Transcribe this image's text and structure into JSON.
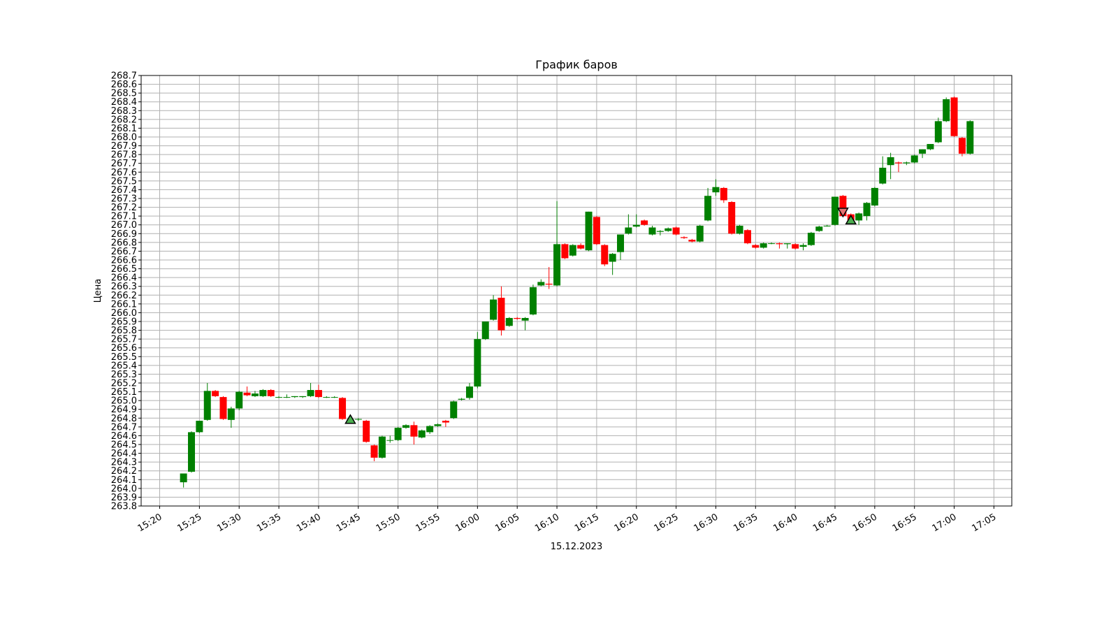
{
  "chart_data": {
    "type": "candlestick",
    "title": "График баров",
    "xlabel": "15.12.2023",
    "ylabel": "Цена",
    "ylim": [
      263.8,
      268.7
    ],
    "xlim": [
      "15:17:40",
      "17:07:15"
    ],
    "grid": true,
    "legend": "none",
    "colors": {
      "up": "#008000",
      "down": "#ff0000",
      "wick": "#000000",
      "grid": "#b0b0b0",
      "buy_marker": "#4caf50",
      "sell_marker": "#e57373"
    },
    "x_ticks": [
      "15:20",
      "15:25",
      "15:30",
      "15:35",
      "15:40",
      "15:45",
      "15:50",
      "15:55",
      "16:00",
      "16:05",
      "16:10",
      "16:15",
      "16:20",
      "16:25",
      "16:30",
      "16:35",
      "16:40",
      "16:45",
      "16:50",
      "16:55",
      "17:00",
      "17:05"
    ],
    "y_ticks": [
      "263.8",
      "263.9",
      "264.0",
      "264.1",
      "264.2",
      "264.3",
      "264.4",
      "264.5",
      "264.6",
      "264.7",
      "264.8",
      "264.9",
      "265.0",
      "265.1",
      "265.2",
      "265.3",
      "265.4",
      "265.5",
      "265.6",
      "265.7",
      "265.8",
      "265.9",
      "266.0",
      "266.1",
      "266.2",
      "266.3",
      "266.4",
      "266.5",
      "266.6",
      "266.7",
      "266.8",
      "266.9",
      "267.0",
      "267.1",
      "267.2",
      "267.3",
      "267.4",
      "267.5",
      "267.6",
      "267.7",
      "267.8",
      "267.9",
      "268.0",
      "268.1",
      "268.2",
      "268.3",
      "268.4",
      "268.5",
      "268.6",
      "268.7"
    ],
    "candles": [
      {
        "time": "15:23",
        "open": 264.07,
        "high": 264.15,
        "low": 264.01,
        "close": 264.17
      },
      {
        "time": "15:24",
        "open": 264.19,
        "high": 264.65,
        "low": 264.18,
        "close": 264.64
      },
      {
        "time": "15:25",
        "open": 264.64,
        "high": 264.77,
        "low": 264.63,
        "close": 264.77
      },
      {
        "time": "15:26",
        "open": 264.78,
        "high": 265.2,
        "low": 264.77,
        "close": 265.11
      },
      {
        "time": "15:27",
        "open": 265.11,
        "high": 265.12,
        "low": 265.04,
        "close": 265.05
      },
      {
        "time": "15:28",
        "open": 265.04,
        "high": 265.05,
        "low": 264.78,
        "close": 264.79
      },
      {
        "time": "15:29",
        "open": 264.78,
        "high": 264.93,
        "low": 264.69,
        "close": 264.91
      },
      {
        "time": "15:30",
        "open": 264.91,
        "high": 265.11,
        "low": 264.89,
        "close": 265.1
      },
      {
        "time": "15:31",
        "open": 265.09,
        "high": 265.16,
        "low": 265.05,
        "close": 265.06
      },
      {
        "time": "15:32",
        "open": 265.05,
        "high": 265.11,
        "low": 265.04,
        "close": 265.08
      },
      {
        "time": "15:33",
        "open": 265.05,
        "high": 265.13,
        "low": 265.04,
        "close": 265.12
      },
      {
        "time": "15:34",
        "open": 265.12,
        "high": 265.13,
        "low": 265.04,
        "close": 265.05
      },
      {
        "time": "15:35",
        "open": 265.04,
        "high": 265.05,
        "low": 265.03,
        "close": 265.04
      },
      {
        "time": "15:36",
        "open": 265.04,
        "high": 265.07,
        "low": 265.03,
        "close": 265.04
      },
      {
        "time": "15:37",
        "open": 265.04,
        "high": 265.05,
        "low": 265.03,
        "close": 265.05
      },
      {
        "time": "15:38",
        "open": 265.04,
        "high": 265.05,
        "low": 265.03,
        "close": 265.05
      },
      {
        "time": "15:39",
        "open": 265.05,
        "high": 265.2,
        "low": 265.04,
        "close": 265.12
      },
      {
        "time": "15:40",
        "open": 265.12,
        "high": 265.18,
        "low": 265.03,
        "close": 265.04
      },
      {
        "time": "15:41",
        "open": 265.04,
        "high": 265.05,
        "low": 265.03,
        "close": 265.04
      },
      {
        "time": "15:42",
        "open": 265.04,
        "high": 265.05,
        "low": 265.03,
        "close": 265.04
      },
      {
        "time": "15:43",
        "open": 265.03,
        "high": 265.04,
        "low": 264.78,
        "close": 264.79
      },
      {
        "time": "15:44",
        "open": 264.79,
        "high": 264.8,
        "low": 264.77,
        "close": 264.79
      },
      {
        "time": "15:45",
        "open": 264.79,
        "high": 264.8,
        "low": 264.77,
        "close": 264.79
      },
      {
        "time": "15:46",
        "open": 264.77,
        "high": 264.78,
        "low": 264.52,
        "close": 264.53
      },
      {
        "time": "15:47",
        "open": 264.49,
        "high": 264.5,
        "low": 264.31,
        "close": 264.35
      },
      {
        "time": "15:48",
        "open": 264.35,
        "high": 264.6,
        "low": 264.34,
        "close": 264.59
      },
      {
        "time": "15:49",
        "open": 264.55,
        "high": 264.6,
        "low": 264.52,
        "close": 264.55
      },
      {
        "time": "15:50",
        "open": 264.55,
        "high": 264.7,
        "low": 264.54,
        "close": 264.69
      },
      {
        "time": "15:51",
        "open": 264.69,
        "high": 264.73,
        "low": 264.68,
        "close": 264.72
      },
      {
        "time": "15:52",
        "open": 264.72,
        "high": 264.76,
        "low": 264.5,
        "close": 264.59
      },
      {
        "time": "15:53",
        "open": 264.58,
        "high": 264.67,
        "low": 264.57,
        "close": 264.66
      },
      {
        "time": "15:54",
        "open": 264.64,
        "high": 264.72,
        "low": 264.62,
        "close": 264.71
      },
      {
        "time": "15:55",
        "open": 264.71,
        "high": 264.74,
        "low": 264.7,
        "close": 264.73
      },
      {
        "time": "15:56",
        "open": 264.77,
        "high": 264.78,
        "low": 264.7,
        "close": 264.75
      },
      {
        "time": "15:57",
        "open": 264.8,
        "high": 265.0,
        "low": 264.79,
        "close": 264.99
      },
      {
        "time": "15:58",
        "open": 265.01,
        "high": 265.03,
        "low": 265.0,
        "close": 265.02
      },
      {
        "time": "15:59",
        "open": 265.03,
        "high": 265.2,
        "low": 265.01,
        "close": 265.16
      },
      {
        "time": "16:00",
        "open": 265.16,
        "high": 265.78,
        "low": 265.14,
        "close": 265.7
      },
      {
        "time": "16:01",
        "open": 265.7,
        "high": 265.9,
        "low": 265.69,
        "close": 265.9
      },
      {
        "time": "16:02",
        "open": 265.92,
        "high": 266.2,
        "low": 265.91,
        "close": 266.15
      },
      {
        "time": "16:03",
        "open": 266.17,
        "high": 266.3,
        "low": 265.74,
        "close": 265.8
      },
      {
        "time": "16:04",
        "open": 265.85,
        "high": 265.95,
        "low": 265.84,
        "close": 265.94
      },
      {
        "time": "16:05",
        "open": 265.94,
        "high": 265.95,
        "low": 265.92,
        "close": 265.93
      },
      {
        "time": "16:06",
        "open": 265.91,
        "high": 265.95,
        "low": 265.8,
        "close": 265.94
      },
      {
        "time": "16:07",
        "open": 265.98,
        "high": 266.32,
        "low": 265.97,
        "close": 266.29
      },
      {
        "time": "16:08",
        "open": 266.31,
        "high": 266.38,
        "low": 266.3,
        "close": 266.35
      },
      {
        "time": "16:09",
        "open": 266.33,
        "high": 266.52,
        "low": 266.27,
        "close": 266.32
      },
      {
        "time": "16:10",
        "open": 266.31,
        "high": 267.27,
        "low": 266.3,
        "close": 266.78
      },
      {
        "time": "16:11",
        "open": 266.78,
        "high": 266.79,
        "low": 266.61,
        "close": 266.62
      },
      {
        "time": "16:12",
        "open": 266.65,
        "high": 266.78,
        "low": 266.64,
        "close": 266.77
      },
      {
        "time": "16:13",
        "open": 266.77,
        "high": 266.79,
        "low": 266.72,
        "close": 266.73
      },
      {
        "time": "16:14",
        "open": 266.71,
        "high": 267.15,
        "low": 266.7,
        "close": 267.15
      },
      {
        "time": "16:15",
        "open": 267.09,
        "high": 267.1,
        "low": 266.77,
        "close": 266.78
      },
      {
        "time": "16:16",
        "open": 266.77,
        "high": 266.78,
        "low": 266.53,
        "close": 266.55
      },
      {
        "time": "16:17",
        "open": 266.58,
        "high": 266.68,
        "low": 266.43,
        "close": 266.67
      },
      {
        "time": "16:18",
        "open": 266.69,
        "high": 266.89,
        "low": 266.6,
        "close": 266.89
      },
      {
        "time": "16:19",
        "open": 266.9,
        "high": 267.12,
        "low": 266.89,
        "close": 266.97
      },
      {
        "time": "16:20",
        "open": 266.98,
        "high": 267.12,
        "low": 266.97,
        "close": 267.0
      },
      {
        "time": "16:21",
        "open": 267.05,
        "high": 267.06,
        "low": 266.99,
        "close": 267.0
      },
      {
        "time": "16:22",
        "open": 266.89,
        "high": 266.99,
        "low": 266.88,
        "close": 266.97
      },
      {
        "time": "16:23",
        "open": 266.92,
        "high": 266.94,
        "low": 266.88,
        "close": 266.93
      },
      {
        "time": "16:24",
        "open": 266.93,
        "high": 266.97,
        "low": 266.92,
        "close": 266.96
      },
      {
        "time": "16:25",
        "open": 266.97,
        "high": 266.98,
        "low": 266.88,
        "close": 266.89
      },
      {
        "time": "16:26",
        "open": 266.86,
        "high": 266.87,
        "low": 266.84,
        "close": 266.85
      },
      {
        "time": "16:27",
        "open": 266.83,
        "high": 266.84,
        "low": 266.8,
        "close": 266.81
      },
      {
        "time": "16:28",
        "open": 266.81,
        "high": 267.0,
        "low": 266.8,
        "close": 266.99
      },
      {
        "time": "16:29",
        "open": 267.05,
        "high": 267.42,
        "low": 267.04,
        "close": 267.33
      },
      {
        "time": "16:30",
        "open": 267.37,
        "high": 267.52,
        "low": 267.33,
        "close": 267.43
      },
      {
        "time": "16:31",
        "open": 267.42,
        "high": 267.43,
        "low": 267.25,
        "close": 267.28
      },
      {
        "time": "16:32",
        "open": 267.26,
        "high": 267.27,
        "low": 266.89,
        "close": 266.9
      },
      {
        "time": "16:33",
        "open": 266.9,
        "high": 267.0,
        "low": 266.89,
        "close": 266.99
      },
      {
        "time": "16:34",
        "open": 266.94,
        "high": 266.95,
        "low": 266.78,
        "close": 266.79
      },
      {
        "time": "16:35",
        "open": 266.77,
        "high": 266.78,
        "low": 266.73,
        "close": 266.74
      },
      {
        "time": "16:36",
        "open": 266.74,
        "high": 266.8,
        "low": 266.73,
        "close": 266.79
      },
      {
        "time": "16:37",
        "open": 266.79,
        "high": 266.8,
        "low": 266.78,
        "close": 266.79
      },
      {
        "time": "16:38",
        "open": 266.79,
        "high": 266.8,
        "low": 266.73,
        "close": 266.78
      },
      {
        "time": "16:39",
        "open": 266.78,
        "high": 266.79,
        "low": 266.73,
        "close": 266.79
      },
      {
        "time": "16:40",
        "open": 266.78,
        "high": 266.79,
        "low": 266.72,
        "close": 266.73
      },
      {
        "time": "16:41",
        "open": 266.75,
        "high": 266.79,
        "low": 266.71,
        "close": 266.77
      },
      {
        "time": "16:42",
        "open": 266.77,
        "high": 266.92,
        "low": 266.76,
        "close": 266.91
      },
      {
        "time": "16:43",
        "open": 266.93,
        "high": 266.99,
        "low": 266.92,
        "close": 266.98
      },
      {
        "time": "16:44",
        "open": 266.99,
        "high": 267.0,
        "low": 266.98,
        "close": 266.99
      },
      {
        "time": "16:45",
        "open": 267.0,
        "high": 267.32,
        "low": 266.99,
        "close": 267.32
      },
      {
        "time": "16:46",
        "open": 267.33,
        "high": 267.34,
        "low": 267.09,
        "close": 267.1
      },
      {
        "time": "16:47",
        "open": 267.12,
        "high": 267.13,
        "low": 267.04,
        "close": 267.05
      },
      {
        "time": "16:48",
        "open": 267.05,
        "high": 267.14,
        "low": 267.0,
        "close": 267.13
      },
      {
        "time": "16:49",
        "open": 267.1,
        "high": 267.26,
        "low": 267.05,
        "close": 267.25
      },
      {
        "time": "16:50",
        "open": 267.22,
        "high": 267.43,
        "low": 267.21,
        "close": 267.42
      },
      {
        "time": "16:51",
        "open": 267.47,
        "high": 267.78,
        "low": 267.46,
        "close": 267.65
      },
      {
        "time": "16:52",
        "open": 267.68,
        "high": 267.82,
        "low": 267.52,
        "close": 267.77
      },
      {
        "time": "16:53",
        "open": 267.71,
        "high": 267.72,
        "low": 267.6,
        "close": 267.7
      },
      {
        "time": "16:54",
        "open": 267.7,
        "high": 267.72,
        "low": 267.68,
        "close": 267.71
      },
      {
        "time": "16:55",
        "open": 267.71,
        "high": 267.8,
        "low": 267.7,
        "close": 267.79
      },
      {
        "time": "16:56",
        "open": 267.81,
        "high": 267.86,
        "low": 267.76,
        "close": 267.86
      },
      {
        "time": "16:57",
        "open": 267.86,
        "high": 267.92,
        "low": 267.85,
        "close": 267.92
      },
      {
        "time": "16:58",
        "open": 267.94,
        "high": 268.22,
        "low": 267.93,
        "close": 268.18
      },
      {
        "time": "16:59",
        "open": 268.18,
        "high": 268.45,
        "low": 268.17,
        "close": 268.43
      },
      {
        "time": "17:00",
        "open": 268.45,
        "high": 268.46,
        "low": 268.0,
        "close": 268.01
      },
      {
        "time": "17:01",
        "open": 267.99,
        "high": 268.0,
        "low": 267.78,
        "close": 267.81
      },
      {
        "time": "17:02",
        "open": 267.81,
        "high": 268.19,
        "low": 267.8,
        "close": 268.18
      }
    ],
    "markers": [
      {
        "kind": "buy",
        "shape": "triangle-up",
        "time": "15:44",
        "price": 264.78
      },
      {
        "kind": "sell",
        "shape": "triangle-down",
        "time": "16:46",
        "price": 267.15
      },
      {
        "kind": "buy",
        "shape": "triangle-up",
        "time": "16:47",
        "price": 267.05
      }
    ]
  }
}
